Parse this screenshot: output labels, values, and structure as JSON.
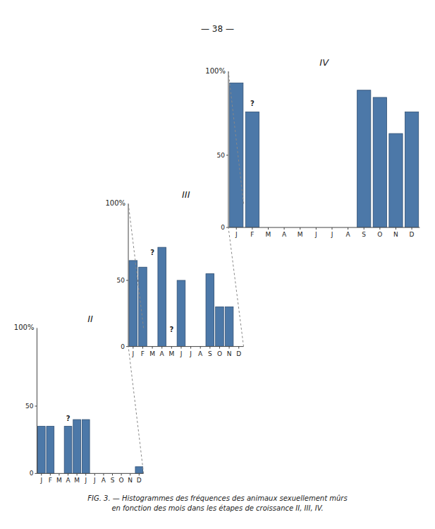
{
  "title": "— 38 —",
  "caption": [
    "FIG. 3.  —  Histogrammes des fréquences des animaux sexuellement mûrs",
    "en fonction des mois dans les étapes de croissance II, III, IV."
  ],
  "chart_data": [
    {
      "type": "bar",
      "title": "II",
      "categories": [
        "J",
        "F",
        "M",
        "A",
        "M",
        "J",
        "J",
        "A",
        "S",
        "O",
        "N",
        "D"
      ],
      "values": [
        35,
        35,
        0,
        35,
        40,
        40,
        0,
        0,
        0,
        0,
        0,
        5
      ],
      "ylim": [
        0,
        108
      ],
      "yticks": [
        0,
        50
      ],
      "annotations": [
        {
          "text": "100%"
        },
        {
          "text": "?",
          "x": 3,
          "y": 38
        }
      ]
    },
    {
      "type": "bar",
      "title": "III",
      "categories": [
        "J",
        "F",
        "M",
        "A",
        "M",
        "J",
        "J",
        "A",
        "S",
        "O",
        "N",
        "D"
      ],
      "values": [
        65,
        60,
        0,
        75,
        0,
        50,
        0,
        0,
        55,
        30,
        30,
        0
      ],
      "ylim": [
        0,
        108
      ],
      "yticks": [
        0,
        50
      ],
      "annotations": [
        {
          "text": "100%"
        },
        {
          "text": "?",
          "x": 2,
          "y": 68
        },
        {
          "text": "?",
          "x": 4,
          "y": 10
        }
      ]
    },
    {
      "type": "bar",
      "title": "IV",
      "categories": [
        "J",
        "F",
        "M",
        "A",
        "M",
        "J",
        "J",
        "A",
        "S",
        "O",
        "N",
        "D"
      ],
      "values": [
        100,
        80,
        0,
        0,
        0,
        0,
        0,
        0,
        95,
        90,
        65,
        80
      ],
      "ylim": [
        0,
        108
      ],
      "yticks": [
        0,
        50
      ],
      "annotations": [
        {
          "text": "100%"
        },
        {
          "text": "?",
          "x": 1,
          "y": 83
        }
      ]
    }
  ]
}
